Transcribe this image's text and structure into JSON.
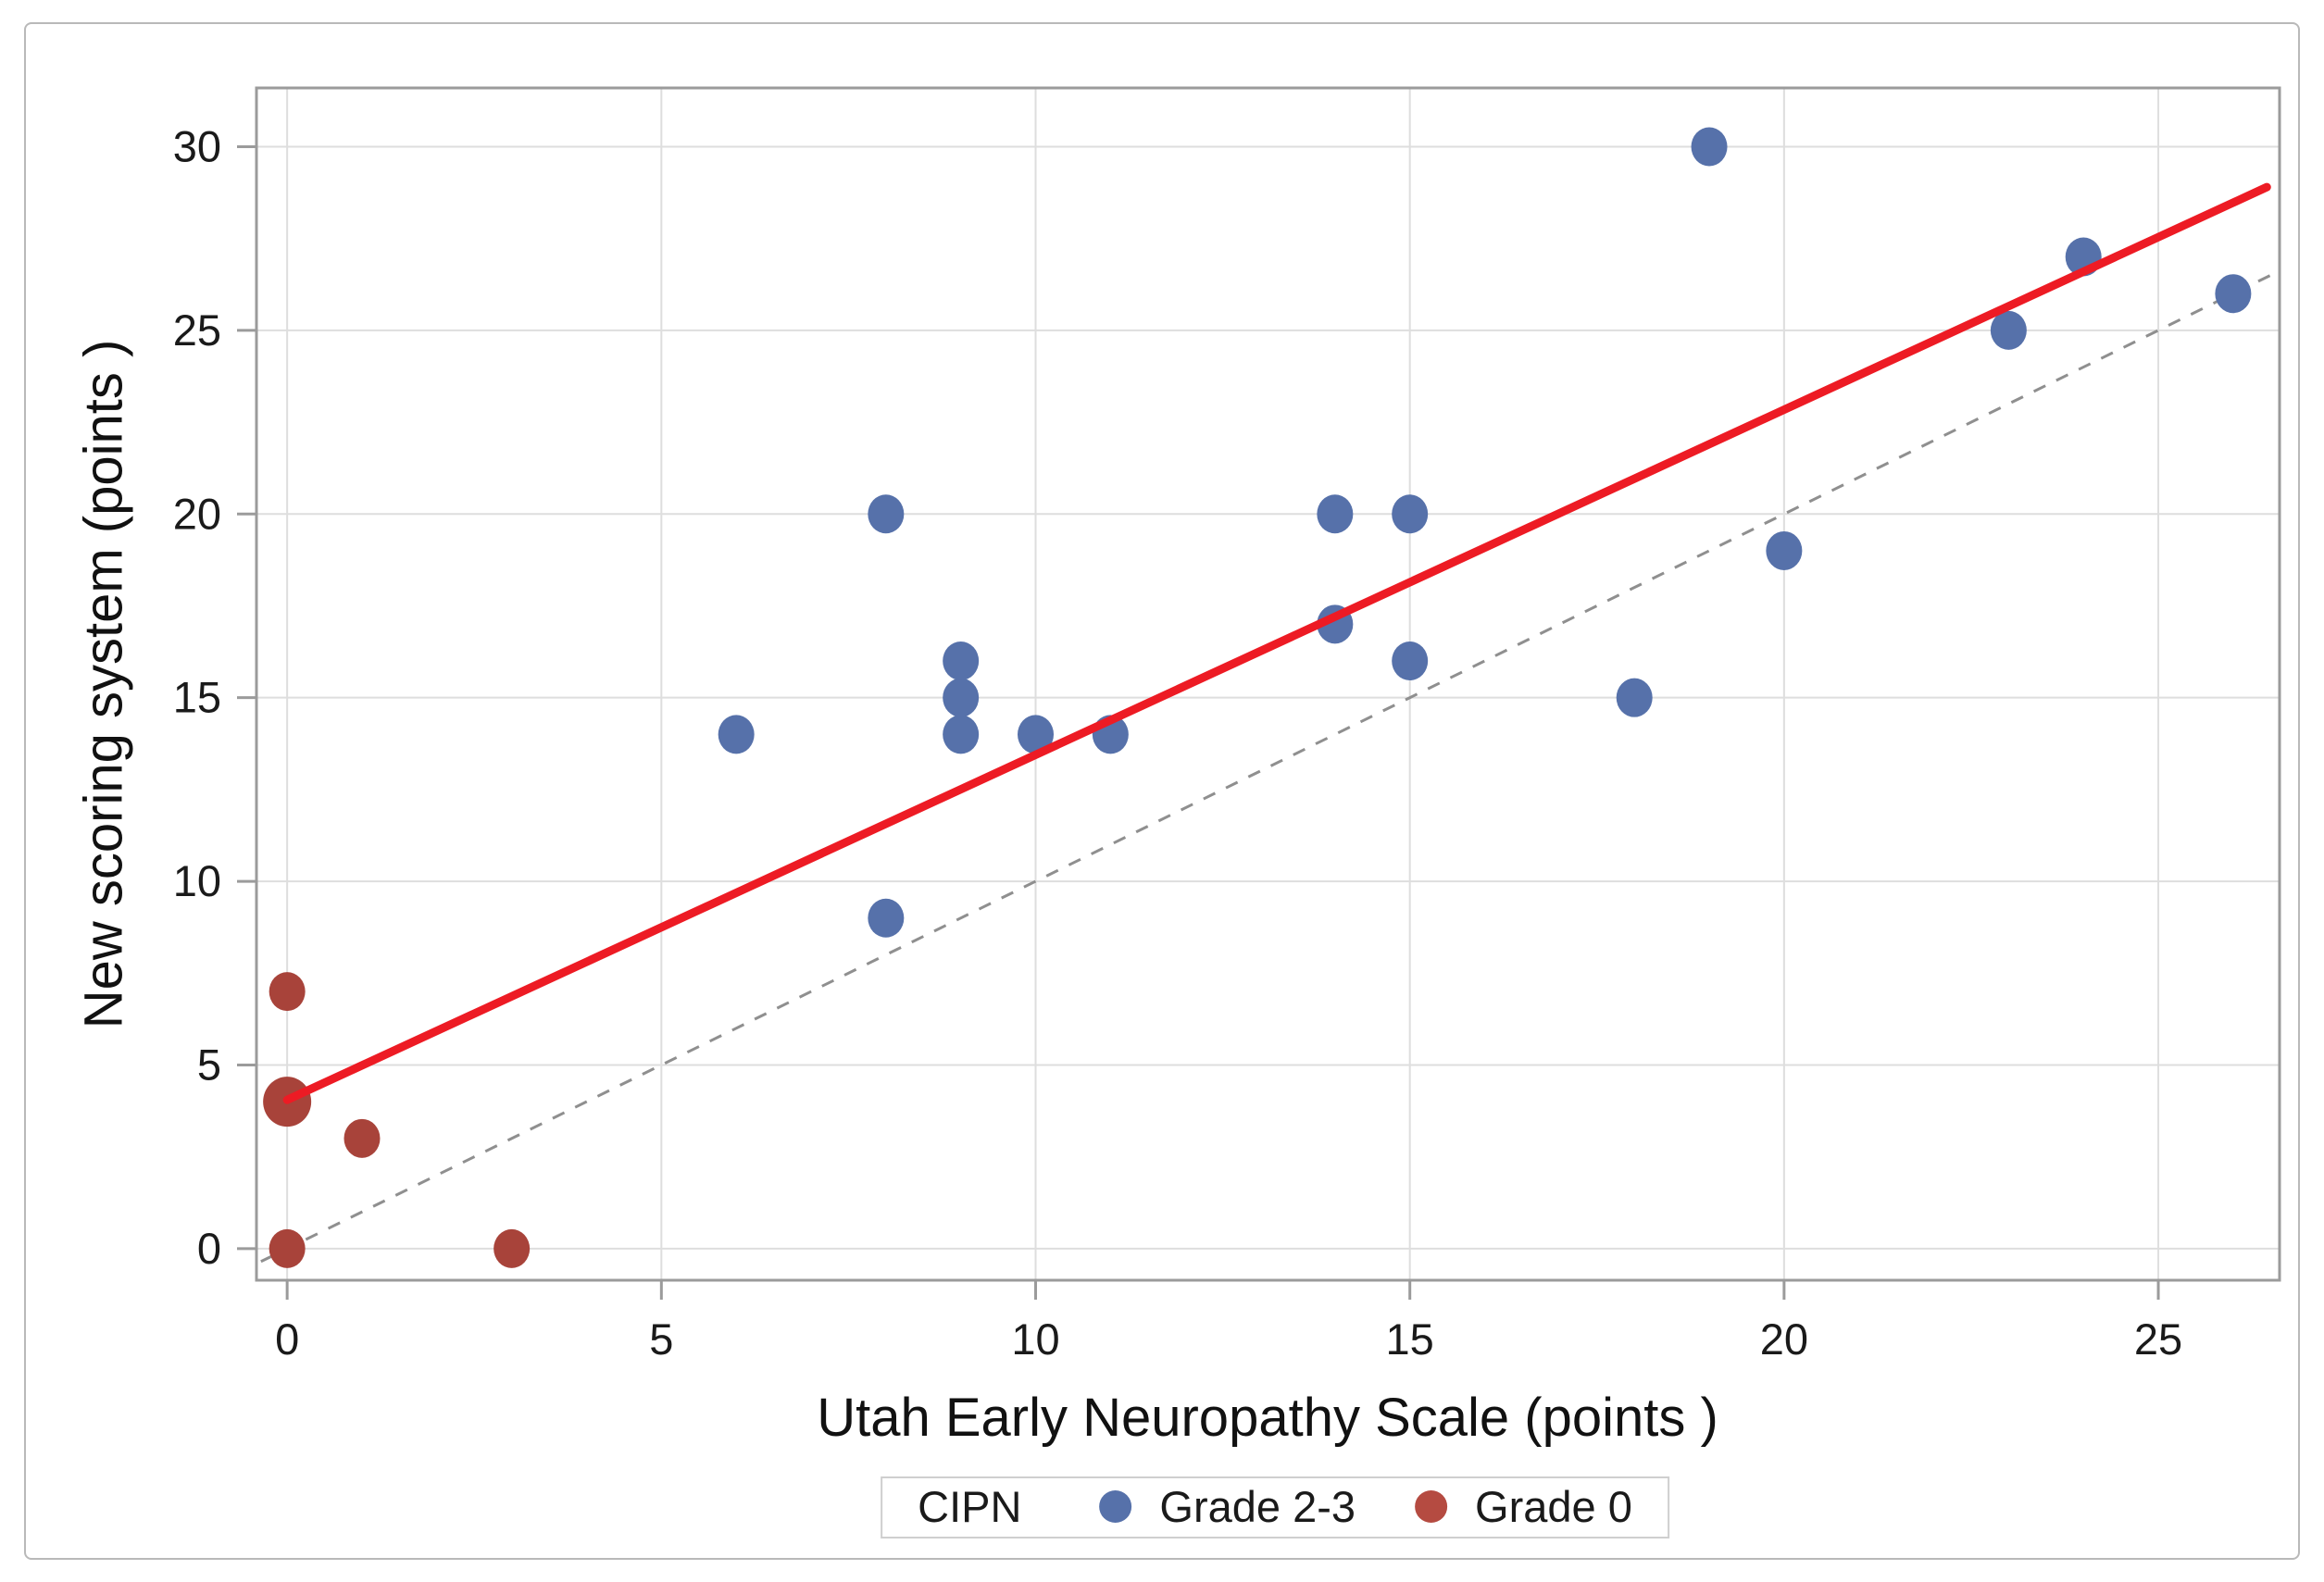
{
  "chart_data": {
    "type": "scatter",
    "title": "",
    "xlabel": "Utah Early Neuropathy Scale (points )",
    "ylabel": "New scoring system (points )",
    "xlim": [
      -0.41,
      26.62
    ],
    "ylim": [
      -0.86,
      31.6
    ],
    "xticks": [
      0,
      5,
      10,
      15,
      20,
      25
    ],
    "yticks": [
      0,
      5,
      10,
      15,
      20,
      25,
      30
    ],
    "grid": true,
    "gridline_color": "#dedede",
    "frame_color": "#9b9b9b",
    "tick_label_color": "#1a1a1a",
    "series": [
      {
        "name": "Grade 2-3",
        "color": "#5671aa",
        "points": [
          [
            6,
            14
          ],
          [
            8,
            9
          ],
          [
            8,
            20
          ],
          [
            9,
            14
          ],
          [
            9,
            15
          ],
          [
            9,
            16
          ],
          [
            10,
            14
          ],
          [
            11,
            14
          ],
          [
            14,
            17
          ],
          [
            14,
            20
          ],
          [
            15,
            16
          ],
          [
            15,
            20
          ],
          [
            18,
            15
          ],
          [
            19,
            30
          ],
          [
            20,
            19
          ],
          [
            23,
            25
          ],
          [
            24,
            27
          ],
          [
            26,
            26
          ]
        ]
      },
      {
        "name": "Grade 0",
        "color": "#a8433a",
        "points": [
          [
            0,
            0
          ],
          [
            0,
            4
          ],
          [
            0,
            7
          ],
          [
            1,
            3
          ],
          [
            3,
            0
          ]
        ],
        "large_points": [
          [
            0,
            4
          ]
        ]
      }
    ],
    "lines": [
      {
        "name": "identity-line",
        "style": "dashed",
        "color": "#8f8f8f",
        "width": 3,
        "dash": "14 13",
        "from": [
          -0.35,
          -0.35
        ],
        "to": [
          26.62,
          26.62
        ]
      },
      {
        "name": "regression-line",
        "style": "solid",
        "color": "#ed1b24",
        "width": 9,
        "dash": null,
        "from": [
          0,
          4.05
        ],
        "to": [
          26.45,
          28.9
        ]
      }
    ],
    "legend": {
      "title": "CIPN",
      "position": "bottom-center",
      "entries": [
        {
          "label": "Grade 2-3",
          "color": "#5671aa"
        },
        {
          "label": "Grade 0",
          "color": "#b54b41"
        }
      ]
    }
  }
}
